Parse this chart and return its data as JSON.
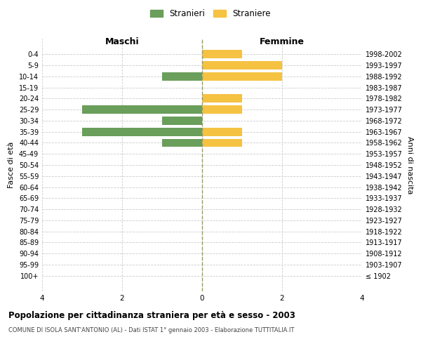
{
  "age_groups": [
    "0-4",
    "5-9",
    "10-14",
    "15-19",
    "20-24",
    "25-29",
    "30-34",
    "35-39",
    "40-44",
    "45-49",
    "50-54",
    "55-59",
    "60-64",
    "65-69",
    "70-74",
    "75-79",
    "80-84",
    "85-89",
    "90-94",
    "95-99",
    "100+"
  ],
  "birth_years": [
    "1998-2002",
    "1993-1997",
    "1988-1992",
    "1983-1987",
    "1978-1982",
    "1973-1977",
    "1968-1972",
    "1963-1967",
    "1958-1962",
    "1953-1957",
    "1948-1952",
    "1943-1947",
    "1938-1942",
    "1933-1937",
    "1928-1932",
    "1923-1927",
    "1918-1922",
    "1913-1917",
    "1908-1912",
    "1903-1907",
    "≤ 1902"
  ],
  "maschi": [
    0,
    0,
    1,
    0,
    0,
    3,
    1,
    3,
    1,
    0,
    0,
    0,
    0,
    0,
    0,
    0,
    0,
    0,
    0,
    0,
    0
  ],
  "femmine": [
    1,
    2,
    2,
    0,
    1,
    1,
    0,
    1,
    1,
    0,
    0,
    0,
    0,
    0,
    0,
    0,
    0,
    0,
    0,
    0,
    0
  ],
  "color_maschi": "#6a9e5b",
  "color_femmine": "#f5c242",
  "xlim": 4,
  "title": "Popolazione per cittadinanza straniera per età e sesso - 2003",
  "subtitle": "COMUNE DI ISOLA SANT'ANTONIO (AL) - Dati ISTAT 1° gennaio 2003 - Elaborazione TUTTITALIA.IT",
  "ylabel_left": "Fasce di età",
  "ylabel_right": "Anni di nascita",
  "label_maschi": "Stranieri",
  "label_femmine": "Straniere",
  "header_maschi": "Maschi",
  "header_femmine": "Femmine",
  "background_color": "#ffffff",
  "grid_color": "#cccccc",
  "center_line_color": "#999966"
}
